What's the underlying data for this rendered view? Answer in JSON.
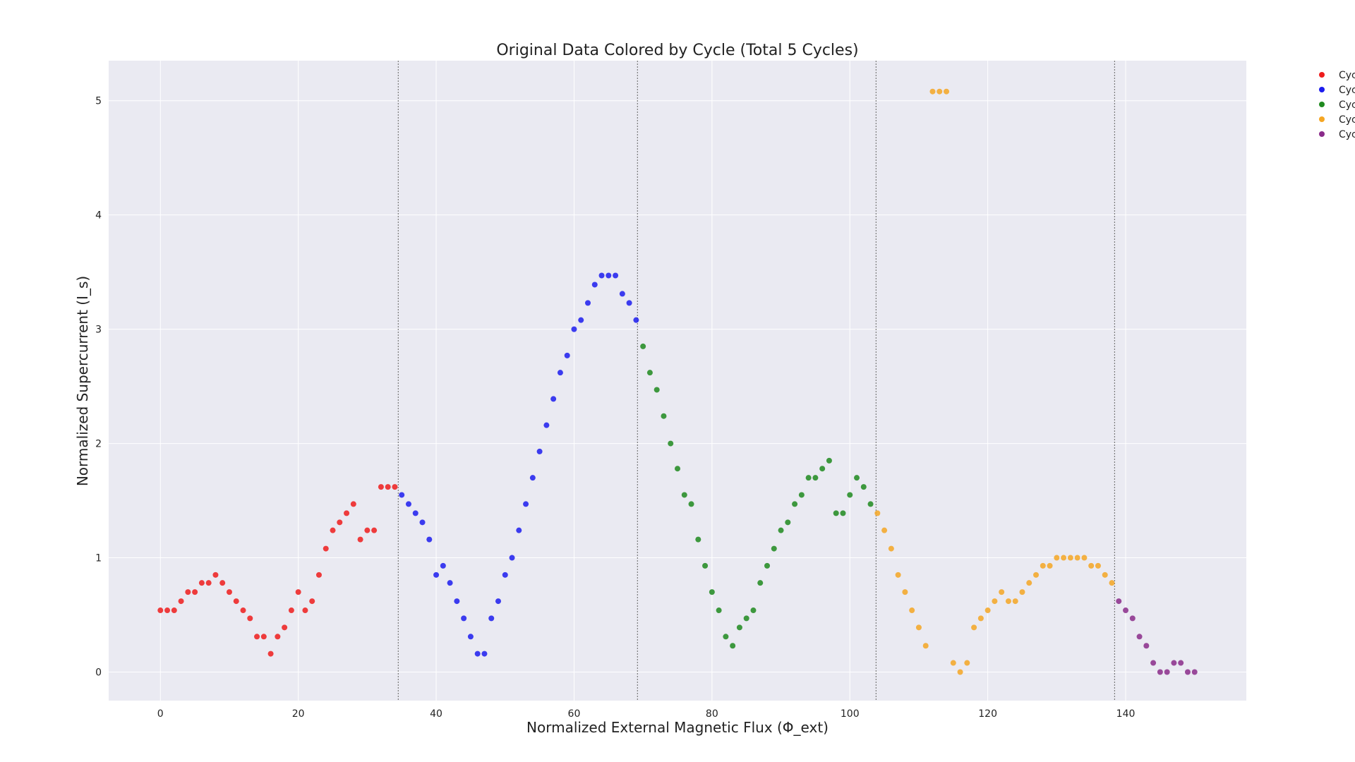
{
  "chart_data": {
    "type": "scatter",
    "title": "Original Data Colored by Cycle (Total 5 Cycles)",
    "xlabel": "Normalized External Magnetic Flux (Φ_ext)",
    "ylabel": "Normalized Supercurrent (I_s)",
    "xlim": [
      -7.5,
      157.5
    ],
    "ylim": [
      -0.25,
      5.35
    ],
    "xticks": [
      "0",
      "20",
      "40",
      "60",
      "80",
      "100",
      "120",
      "140"
    ],
    "yticks": [
      "0",
      "1",
      "2",
      "3",
      "4",
      "5"
    ],
    "grid": true,
    "background": "#eaeaf2",
    "cycle_boundaries": [
      34.5,
      69.2,
      103.8,
      138.4
    ],
    "legend": {
      "placement": "outside-top-right",
      "entries": [
        "Cyc",
        "Cyc",
        "Cyc",
        "Cyc",
        "Cyc"
      ]
    },
    "series": [
      {
        "color": "#ee1c1c",
        "x": [
          0,
          1,
          2,
          3,
          4,
          5,
          6,
          7,
          8,
          9,
          10,
          11,
          12,
          13,
          14,
          15,
          16,
          17,
          18,
          19,
          20,
          21,
          22,
          23,
          24,
          25,
          26,
          27,
          28,
          29,
          30,
          31,
          32,
          33,
          34
        ],
        "y": [
          0.54,
          0.54,
          0.54,
          0.62,
          0.7,
          0.7,
          0.78,
          0.78,
          0.85,
          0.78,
          0.7,
          0.62,
          0.54,
          0.47,
          0.31,
          0.31,
          0.16,
          0.31,
          0.39,
          0.54,
          0.7,
          0.54,
          0.62,
          0.85,
          1.08,
          1.24,
          1.31,
          1.39,
          1.47,
          1.16,
          1.24,
          1.24,
          1.62,
          1.62,
          1.62
        ]
      },
      {
        "color": "#1c1cee",
        "x": [
          35,
          36,
          37,
          38,
          39,
          40,
          41,
          42,
          43,
          44,
          45,
          46,
          47,
          48,
          49,
          50,
          51,
          52,
          53,
          54,
          55,
          56,
          57,
          58,
          59,
          60,
          61,
          62,
          63,
          64,
          65,
          66,
          67,
          68,
          69
        ],
        "y": [
          1.55,
          1.47,
          1.39,
          1.31,
          1.16,
          0.85,
          0.93,
          0.78,
          0.62,
          0.47,
          0.31,
          0.16,
          0.16,
          0.47,
          0.62,
          0.85,
          1.0,
          1.24,
          1.47,
          1.7,
          1.93,
          2.16,
          2.39,
          2.62,
          2.77,
          3.0,
          3.08,
          3.23,
          3.39,
          3.47,
          3.47,
          3.47,
          3.31,
          3.23,
          3.08
        ]
      },
      {
        "color": "#1f8a1f",
        "x": [
          70,
          71,
          72,
          73,
          74,
          75,
          76,
          77,
          78,
          79,
          80,
          81,
          82,
          83,
          84,
          85,
          86,
          87,
          88,
          89,
          90,
          91,
          92,
          93,
          94,
          95,
          96,
          97,
          98,
          99,
          100,
          101,
          102,
          103
        ],
        "y": [
          2.85,
          2.62,
          2.47,
          2.24,
          2.0,
          1.78,
          1.55,
          1.47,
          1.16,
          0.93,
          0.7,
          0.54,
          0.31,
          0.23,
          0.39,
          0.47,
          0.54,
          0.78,
          0.93,
          1.08,
          1.24,
          1.31,
          1.47,
          1.55,
          1.7,
          1.7,
          1.78,
          1.85,
          1.39,
          1.39,
          1.55,
          1.7,
          1.62,
          1.47
        ]
      },
      {
        "color": "#f5a623",
        "x": [
          104,
          105,
          106,
          107,
          108,
          109,
          110,
          111,
          112,
          113,
          114,
          115,
          116,
          117,
          118,
          119,
          120,
          121,
          122,
          123,
          124,
          125,
          126,
          127,
          128,
          129,
          130,
          131,
          132,
          133,
          134,
          135,
          136,
          137,
          138
        ],
        "y": [
          1.39,
          1.24,
          1.08,
          0.85,
          0.7,
          0.54,
          0.39,
          0.23,
          5.08,
          5.08,
          5.08,
          0.08,
          0.0,
          0.08,
          0.39,
          0.47,
          0.54,
          0.62,
          0.7,
          0.62,
          0.62,
          0.7,
          0.78,
          0.85,
          0.93,
          0.93,
          1.0,
          1.0,
          1.0,
          1.0,
          1.0,
          0.93,
          0.93,
          0.85,
          0.78
        ]
      },
      {
        "color": "#8a2b8a",
        "x": [
          139,
          140,
          141,
          142,
          143,
          144,
          145,
          146,
          147,
          148,
          149,
          150
        ],
        "y": [
          0.62,
          0.54,
          0.47,
          0.31,
          0.23,
          0.08,
          0.0,
          0.0,
          0.08,
          0.08,
          0.0,
          0.0
        ]
      }
    ]
  }
}
